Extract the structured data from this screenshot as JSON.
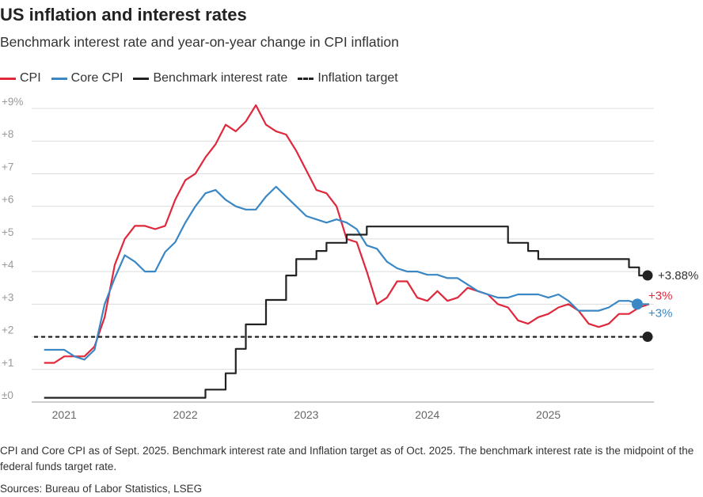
{
  "header": {
    "title": "US inflation and interest rates",
    "subtitle": "Benchmark interest rate and year-on-year change in CPI inflation"
  },
  "legend": [
    {
      "label": "CPI",
      "color": "#e0283c",
      "style": "solid"
    },
    {
      "label": "Core CPI",
      "color": "#3a87c4",
      "style": "solid"
    },
    {
      "label": "Benchmark interest rate",
      "color": "#222222",
      "style": "solid"
    },
    {
      "label": "Inflation target",
      "color": "#222222",
      "style": "dashed"
    }
  ],
  "footer": {
    "note": "CPI and Core CPI as of Sept. 2025. Benchmark interest rate and Inflation target as of Oct. 2025. The benchmark interest rate is the midpoint of the federal funds target rate.",
    "source": "Sources: Bureau of Labor Statistics, LSEG"
  },
  "chart_data": {
    "type": "line",
    "title": "US inflation and interest rates",
    "subtitle": "Benchmark interest rate and year-on-year change in CPI inflation",
    "ylim": [
      0,
      9
    ],
    "y_ticks": [
      {
        "value": 0,
        "label": "±0"
      },
      {
        "value": 1,
        "label": "+1"
      },
      {
        "value": 2,
        "label": "+2"
      },
      {
        "value": 3,
        "label": "+3"
      },
      {
        "value": 4,
        "label": "+4"
      },
      {
        "value": 5,
        "label": "+5"
      },
      {
        "value": 6,
        "label": "+6"
      },
      {
        "value": 7,
        "label": "+7"
      },
      {
        "value": 8,
        "label": "+8"
      },
      {
        "value": 9,
        "label": "+9%"
      }
    ],
    "x_range": [
      "2020-10",
      "2025-11"
    ],
    "x_ticks": [
      {
        "date": "2021-01",
        "label": "2021"
      },
      {
        "date": "2022-01",
        "label": "2022"
      },
      {
        "date": "2023-01",
        "label": "2023"
      },
      {
        "date": "2024-01",
        "label": "2024"
      },
      {
        "date": "2025-01",
        "label": "2025"
      }
    ],
    "grid": true,
    "legend_position": "top-left",
    "series": [
      {
        "name": "CPI",
        "color": "#e0283c",
        "end_label": "+3%",
        "points": [
          [
            "2020-11",
            1.2
          ],
          [
            "2020-12",
            1.2
          ],
          [
            "2021-01",
            1.4
          ],
          [
            "2021-02",
            1.4
          ],
          [
            "2021-03",
            1.4
          ],
          [
            "2021-04",
            1.7
          ],
          [
            "2021-05",
            2.6
          ],
          [
            "2021-06",
            4.2
          ],
          [
            "2021-07",
            5.0
          ],
          [
            "2021-08",
            5.4
          ],
          [
            "2021-09",
            5.4
          ],
          [
            "2021-10",
            5.3
          ],
          [
            "2021-11",
            5.4
          ],
          [
            "2021-12",
            6.2
          ],
          [
            "2022-01",
            6.8
          ],
          [
            "2022-02",
            7.0
          ],
          [
            "2022-03",
            7.5
          ],
          [
            "2022-04",
            7.9
          ],
          [
            "2022-05",
            8.5
          ],
          [
            "2022-06",
            8.3
          ],
          [
            "2022-07",
            8.6
          ],
          [
            "2022-08",
            9.1
          ],
          [
            "2022-09",
            8.5
          ],
          [
            "2022-10",
            8.3
          ],
          [
            "2022-11",
            8.2
          ],
          [
            "2022-12",
            7.7
          ],
          [
            "2023-01",
            7.1
          ],
          [
            "2023-02",
            6.5
          ],
          [
            "2023-03",
            6.4
          ],
          [
            "2023-04",
            6.0
          ],
          [
            "2023-05",
            5.0
          ],
          [
            "2023-06",
            4.9
          ],
          [
            "2023-07",
            4.0
          ],
          [
            "2023-08",
            3.0
          ],
          [
            "2023-09",
            3.2
          ],
          [
            "2023-10",
            3.7
          ],
          [
            "2023-11",
            3.7
          ],
          [
            "2023-12",
            3.2
          ],
          [
            "2024-01",
            3.1
          ],
          [
            "2024-02",
            3.4
          ],
          [
            "2024-03",
            3.1
          ],
          [
            "2024-04",
            3.2
          ],
          [
            "2024-05",
            3.5
          ],
          [
            "2024-06",
            3.4
          ],
          [
            "2024-07",
            3.3
          ],
          [
            "2024-08",
            3.0
          ],
          [
            "2024-09",
            2.9
          ],
          [
            "2024-10",
            2.5
          ],
          [
            "2024-11",
            2.4
          ],
          [
            "2024-12",
            2.6
          ],
          [
            "2025-01",
            2.7
          ],
          [
            "2025-02",
            2.9
          ],
          [
            "2025-03",
            3.0
          ],
          [
            "2025-04",
            2.8
          ],
          [
            "2025-05",
            2.4
          ],
          [
            "2025-06",
            2.3
          ],
          [
            "2025-07",
            2.4
          ],
          [
            "2025-08",
            2.7
          ],
          [
            "2025-09",
            2.7
          ],
          [
            "2025-10",
            2.9
          ],
          [
            "2025-11",
            3.0
          ]
        ]
      },
      {
        "name": "Core CPI",
        "color": "#3a87c4",
        "end_label": "+3%",
        "points": [
          [
            "2020-11",
            1.6
          ],
          [
            "2020-12",
            1.6
          ],
          [
            "2021-01",
            1.6
          ],
          [
            "2021-02",
            1.4
          ],
          [
            "2021-03",
            1.3
          ],
          [
            "2021-04",
            1.6
          ],
          [
            "2021-05",
            3.0
          ],
          [
            "2021-06",
            3.8
          ],
          [
            "2021-07",
            4.5
          ],
          [
            "2021-08",
            4.3
          ],
          [
            "2021-09",
            4.0
          ],
          [
            "2021-10",
            4.0
          ],
          [
            "2021-11",
            4.6
          ],
          [
            "2021-12",
            4.9
          ],
          [
            "2022-01",
            5.5
          ],
          [
            "2022-02",
            6.0
          ],
          [
            "2022-03",
            6.4
          ],
          [
            "2022-04",
            6.5
          ],
          [
            "2022-05",
            6.2
          ],
          [
            "2022-06",
            6.0
          ],
          [
            "2022-07",
            5.9
          ],
          [
            "2022-08",
            5.9
          ],
          [
            "2022-09",
            6.3
          ],
          [
            "2022-10",
            6.6
          ],
          [
            "2022-11",
            6.3
          ],
          [
            "2022-12",
            6.0
          ],
          [
            "2023-01",
            5.7
          ],
          [
            "2023-02",
            5.6
          ],
          [
            "2023-03",
            5.5
          ],
          [
            "2023-04",
            5.6
          ],
          [
            "2023-05",
            5.5
          ],
          [
            "2023-06",
            5.3
          ],
          [
            "2023-07",
            4.8
          ],
          [
            "2023-08",
            4.7
          ],
          [
            "2023-09",
            4.3
          ],
          [
            "2023-10",
            4.1
          ],
          [
            "2023-11",
            4.0
          ],
          [
            "2023-12",
            4.0
          ],
          [
            "2024-01",
            3.9
          ],
          [
            "2024-02",
            3.9
          ],
          [
            "2024-03",
            3.8
          ],
          [
            "2024-04",
            3.8
          ],
          [
            "2024-05",
            3.6
          ],
          [
            "2024-06",
            3.4
          ],
          [
            "2024-07",
            3.3
          ],
          [
            "2024-08",
            3.2
          ],
          [
            "2024-09",
            3.2
          ],
          [
            "2024-10",
            3.3
          ],
          [
            "2024-11",
            3.3
          ],
          [
            "2024-12",
            3.3
          ],
          [
            "2025-01",
            3.2
          ],
          [
            "2025-02",
            3.3
          ],
          [
            "2025-03",
            3.1
          ],
          [
            "2025-04",
            2.8
          ],
          [
            "2025-05",
            2.8
          ],
          [
            "2025-06",
            2.8
          ],
          [
            "2025-07",
            2.9
          ],
          [
            "2025-08",
            3.1
          ],
          [
            "2025-09",
            3.1
          ],
          [
            "2025-10",
            3.0
          ],
          [
            "2025-11",
            3.0
          ]
        ]
      },
      {
        "name": "Benchmark interest rate",
        "color": "#222222",
        "step": true,
        "end_label": "+3.88%",
        "points": [
          [
            "2020-11",
            0.13
          ],
          [
            "2022-03",
            0.13
          ],
          [
            "2022-03",
            0.38
          ],
          [
            "2022-05",
            0.38
          ],
          [
            "2022-05",
            0.88
          ],
          [
            "2022-06",
            0.88
          ],
          [
            "2022-06",
            1.63
          ],
          [
            "2022-07",
            1.63
          ],
          [
            "2022-07",
            2.38
          ],
          [
            "2022-09",
            2.38
          ],
          [
            "2022-09",
            3.13
          ],
          [
            "2022-11",
            3.13
          ],
          [
            "2022-11",
            3.88
          ],
          [
            "2022-12",
            3.88
          ],
          [
            "2022-12",
            4.38
          ],
          [
            "2023-02",
            4.38
          ],
          [
            "2023-02",
            4.63
          ],
          [
            "2023-03",
            4.63
          ],
          [
            "2023-03",
            4.88
          ],
          [
            "2023-05",
            4.88
          ],
          [
            "2023-05",
            5.13
          ],
          [
            "2023-07",
            5.13
          ],
          [
            "2023-07",
            5.38
          ],
          [
            "2024-09",
            5.38
          ],
          [
            "2024-09",
            4.88
          ],
          [
            "2024-11",
            4.88
          ],
          [
            "2024-11",
            4.63
          ],
          [
            "2024-12",
            4.63
          ],
          [
            "2024-12",
            4.38
          ],
          [
            "2025-09",
            4.38
          ],
          [
            "2025-09",
            4.13
          ],
          [
            "2025-10",
            4.13
          ],
          [
            "2025-10",
            3.88
          ],
          [
            "2025-11",
            3.88
          ]
        ]
      },
      {
        "name": "Inflation target",
        "color": "#222222",
        "dashed": true,
        "points": [
          [
            "2020-10",
            2.0
          ],
          [
            "2025-11",
            2.0
          ]
        ]
      }
    ]
  }
}
